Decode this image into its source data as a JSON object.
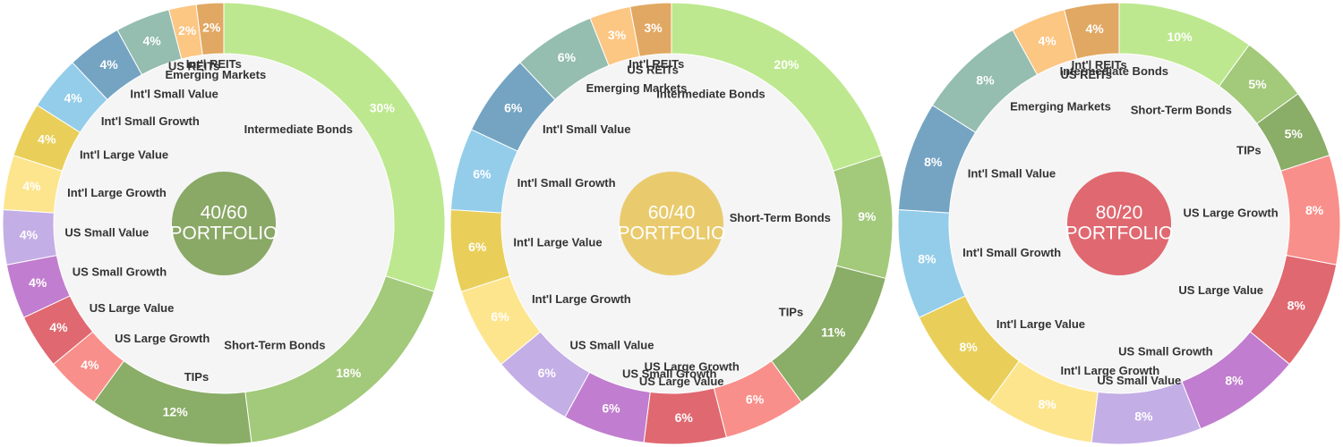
{
  "chart_data": [
    {
      "type": "donut",
      "title": "40/60",
      "subtitle": "PORTFOLIO",
      "center_color": "#8aa866",
      "categories": [
        "Intermediate Bonds",
        "Short-Term Bonds",
        "TIPs",
        "US Large Growth",
        "US Large Value",
        "US Small Growth",
        "US Small Value",
        "Int'l Large Growth",
        "Int'l Large Value",
        "Int'l Small Growth",
        "Int'l Small Value",
        "Emerging Markets",
        "US REITs",
        "Int'l REITs"
      ],
      "values": [
        30,
        18,
        12,
        4,
        4,
        4,
        4,
        4,
        4,
        4,
        4,
        4,
        2,
        2
      ],
      "value_labels": [
        "30%",
        "18%",
        "12%",
        "4%",
        "4%",
        "4%",
        "4%",
        "4%",
        "4%",
        "4%",
        "4%",
        "4%",
        "2%",
        "2%"
      ],
      "colors": [
        "#bde88f",
        "#a3c97a",
        "#8aad67",
        "#f98f8a",
        "#e06870",
        "#c17dcf",
        "#c4aee6",
        "#fde58e",
        "#e9cf5a",
        "#94cdea",
        "#74a4c2",
        "#95bdb0",
        "#fcc683",
        "#e1a863"
      ]
    },
    {
      "type": "donut",
      "title": "60/40",
      "subtitle": "PORTFOLIO",
      "center_color": "#e9cb6e",
      "categories": [
        "Intermediate Bonds",
        "Short-Term Bonds",
        "TIPs",
        "US Large Growth",
        "US Large Value",
        "US Small Growth",
        "US Small Value",
        "Int'l Large Growth",
        "Int'l Large Value",
        "Int'l Small Growth",
        "Int'l Small Value",
        "Emerging Markets",
        "US REITs",
        "Int'l REITs"
      ],
      "values": [
        20,
        9,
        11,
        6,
        6,
        6,
        6,
        6,
        6,
        6,
        6,
        6,
        3,
        3
      ],
      "value_labels": [
        "20%",
        "9%",
        "11%",
        "6%",
        "6%",
        "6%",
        "6%",
        "6%",
        "6%",
        "6%",
        "6%",
        "6%",
        "3%",
        "3%"
      ],
      "colors": [
        "#bde88f",
        "#a3c97a",
        "#8aad67",
        "#f98f8a",
        "#e06870",
        "#c17dcf",
        "#c4aee6",
        "#fde58e",
        "#e9cf5a",
        "#94cdea",
        "#74a4c2",
        "#95bdb0",
        "#fcc683",
        "#e1a863"
      ]
    },
    {
      "type": "donut",
      "title": "80/20",
      "subtitle": "PORTFOLIO",
      "center_color": "#e06870",
      "categories": [
        "Intermediate Bonds",
        "Short-Term Bonds",
        "TIPs",
        "US Large Growth",
        "US Large Value",
        "US Small Growth",
        "US Small Value",
        "Int'l Large Growth",
        "Int'l Large Value",
        "Int'l Small Growth",
        "Int'l Small Value",
        "Emerging Markets",
        "US REITs",
        "Int'l REITs"
      ],
      "values": [
        10,
        5,
        5,
        8,
        8,
        8,
        8,
        8,
        8,
        8,
        8,
        8,
        4,
        4
      ],
      "value_labels": [
        "10%",
        "5%",
        "5%",
        "8%",
        "8%",
        "8%",
        "8%",
        "8%",
        "8%",
        "8%",
        "8%",
        "8%",
        "4%",
        "4%"
      ],
      "colors": [
        "#bde88f",
        "#a3c97a",
        "#8aad67",
        "#f98f8a",
        "#e06870",
        "#c17dcf",
        "#c4aee6",
        "#fde58e",
        "#e9cf5a",
        "#94cdea",
        "#74a4c2",
        "#95bdb0",
        "#fcc683",
        "#e1a863"
      ]
    }
  ]
}
